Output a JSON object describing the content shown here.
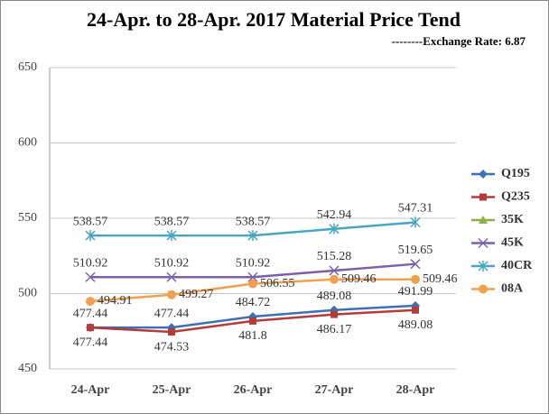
{
  "chart_data": {
    "type": "line",
    "title": "24-Apr. to 28-Apr. 2017 Material Price Tend",
    "subtitle": "--------Exchange Rate: 6.87",
    "categories": [
      "24-Apr",
      "25-Apr",
      "26-Apr",
      "27-Apr",
      "28-Apr"
    ],
    "series": [
      {
        "name": "Q195",
        "color": "#3f6fb5",
        "marker": "diamond",
        "label_pos": "above",
        "values": [
          477.44,
          477.44,
          484.72,
          489.08,
          491.99
        ]
      },
      {
        "name": "Q235",
        "color": "#b13c3a",
        "marker": "square",
        "label_pos": "below",
        "values": [
          477.44,
          474.53,
          481.8,
          486.17,
          489.08
        ]
      },
      {
        "name": "35K",
        "color": "#8cb04a",
        "marker": "triangle",
        "label_pos": "above",
        "values": [
          null,
          null,
          null,
          null,
          null
        ]
      },
      {
        "name": "45K",
        "color": "#7b60a8",
        "marker": "x",
        "label_pos": "above",
        "values": [
          510.92,
          510.92,
          510.92,
          515.28,
          519.65
        ]
      },
      {
        "name": "40CR",
        "color": "#4aa6bf",
        "marker": "star",
        "label_pos": "above",
        "values": [
          538.57,
          538.57,
          538.57,
          542.94,
          547.31
        ]
      },
      {
        "name": "08A",
        "color": "#f0a150",
        "marker": "circle",
        "label_pos": "right",
        "values": [
          494.91,
          499.27,
          506.55,
          509.46,
          509.46
        ]
      }
    ],
    "ylim": [
      450,
      650
    ],
    "yticks": [
      450,
      500,
      550,
      600,
      650
    ],
    "grid": true,
    "legend": "right"
  }
}
